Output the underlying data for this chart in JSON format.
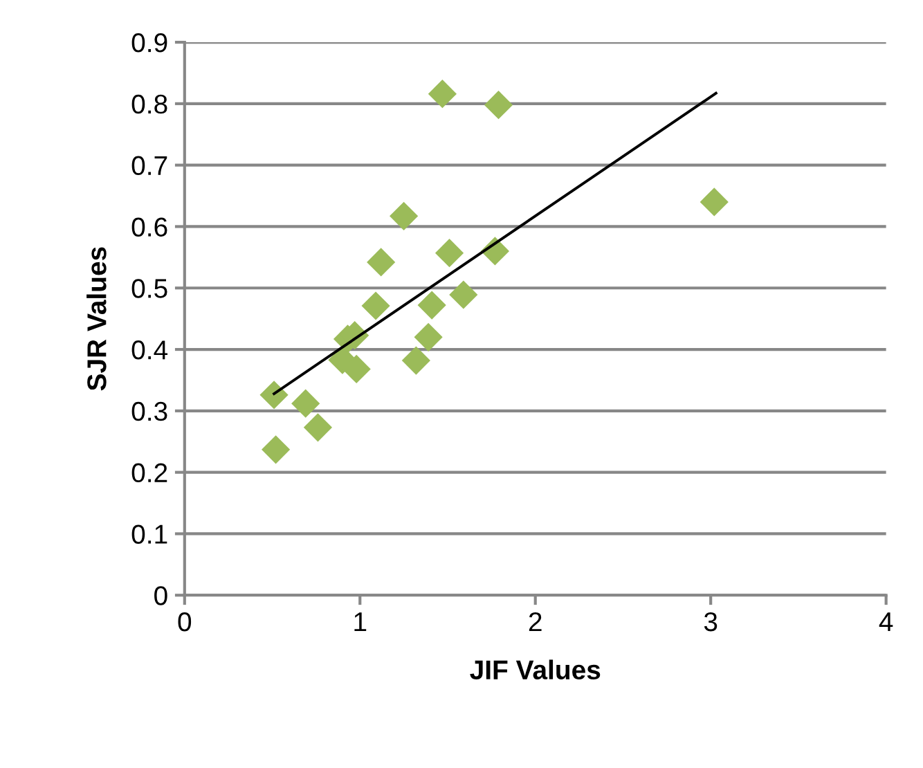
{
  "chart_data": {
    "type": "scatter",
    "xlabel": "JIF Values",
    "ylabel": "SJR Values",
    "xlim": [
      0,
      4
    ],
    "xticks": [
      0,
      1,
      2,
      3,
      4
    ],
    "ylim": [
      0,
      0.9
    ],
    "yticks": [
      0,
      0.1,
      0.2,
      0.3,
      0.4,
      0.5,
      0.6,
      0.7,
      0.8,
      0.9
    ],
    "grid": "y",
    "legend": false,
    "marker": "diamond",
    "series": [
      {
        "color": "#9bbb59",
        "x": [
          0.51,
          0.52,
          0.69,
          0.76,
          0.9,
          0.93,
          0.97,
          0.98,
          1.09,
          1.12,
          1.25,
          1.32,
          1.39,
          1.41,
          1.47,
          1.51,
          1.59,
          1.77,
          1.79,
          3.02
        ],
        "values": [
          0.326,
          0.237,
          0.312,
          0.273,
          0.383,
          0.417,
          0.423,
          0.368,
          0.471,
          0.542,
          0.617,
          0.382,
          0.42,
          0.472,
          0.816,
          0.557,
          0.489,
          0.56,
          0.798,
          0.64
        ]
      },
      {
        "type": "line",
        "color": "#000000",
        "marker": "none",
        "x": [
          0.51,
          3.03
        ],
        "values": [
          0.328,
          0.817
        ]
      }
    ]
  }
}
